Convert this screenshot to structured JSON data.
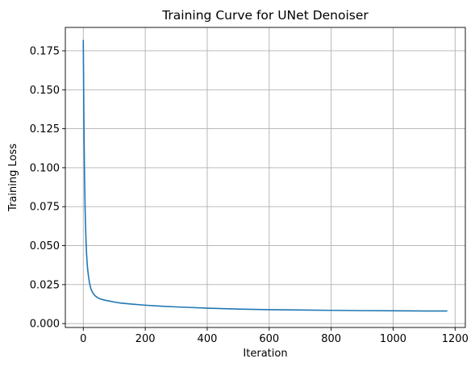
{
  "chart_data": {
    "type": "line",
    "title": "Training Curve for UNet Denoiser",
    "xlabel": "Iteration",
    "ylabel": "Training Loss",
    "xlim": [
      -58,
      1233
    ],
    "ylim": [
      -0.0025,
      0.19
    ],
    "xticks": [
      0,
      200,
      400,
      600,
      800,
      1000,
      1200
    ],
    "xtick_labels": [
      "0",
      "200",
      "400",
      "600",
      "800",
      "1000",
      "1200"
    ],
    "yticks": [
      0.0,
      0.025,
      0.05,
      0.075,
      0.1,
      0.125,
      0.15,
      0.175
    ],
    "ytick_labels": [
      "0.000",
      "0.025",
      "0.050",
      "0.075",
      "0.100",
      "0.125",
      "0.150",
      "0.175"
    ],
    "grid": true,
    "line_color": "#1f77b4",
    "series": [
      {
        "x": [
          0,
          2,
          4,
          6,
          8,
          10,
          12,
          14,
          17,
          20,
          25,
          30,
          35,
          40,
          50,
          60,
          70,
          80,
          100,
          120,
          150,
          200,
          250,
          300,
          350,
          400,
          500,
          600,
          700,
          800,
          900,
          1000,
          1100,
          1175
        ],
        "values": [
          0.182,
          0.13,
          0.095,
          0.072,
          0.058,
          0.047,
          0.04,
          0.035,
          0.03,
          0.026,
          0.022,
          0.02,
          0.0185,
          0.0175,
          0.0162,
          0.0155,
          0.015,
          0.0146,
          0.0138,
          0.0132,
          0.0126,
          0.0118,
          0.0112,
          0.0107,
          0.0103,
          0.0099,
          0.0093,
          0.0089,
          0.0087,
          0.0085,
          0.0083,
          0.0082,
          0.0081,
          0.0081
        ]
      }
    ]
  }
}
